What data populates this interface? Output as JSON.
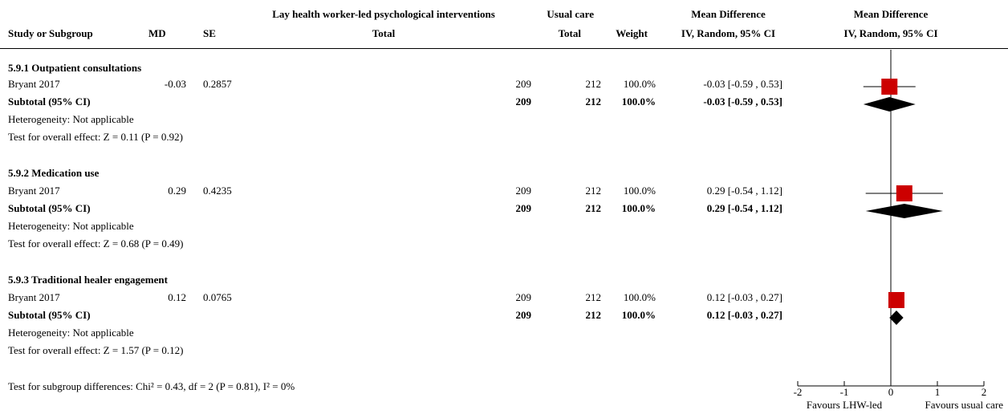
{
  "header": {
    "study_or_subgroup": "Study or Subgroup",
    "md": "MD",
    "se": "SE",
    "experimental_group": "Lay health worker-led psychological interventions",
    "experimental_total": "Total",
    "control_group": "Usual care",
    "control_total": "Total",
    "weight": "Weight",
    "effect_title": "Mean Difference",
    "effect_method": "IV, Random, 95% CI",
    "plot_title": "Mean Difference",
    "plot_method": "IV, Random, 95% CI"
  },
  "subgroups": [
    {
      "title": "5.9.1 Outpatient consultations",
      "study": {
        "name": "Bryant 2017",
        "md": "-0.03",
        "se": "0.2857",
        "n_exp": "209",
        "n_ctrl": "212",
        "weight": "100.0%",
        "ci": "-0.03 [-0.59 , 0.53]"
      },
      "subtotal": {
        "label": "Subtotal (95% CI)",
        "n_exp": "209",
        "n_ctrl": "212",
        "weight": "100.0%",
        "ci": "-0.03 [-0.59 , 0.53]"
      },
      "heterogeneity": "Heterogeneity: Not applicable",
      "overall": "Test for overall effect: Z = 0.11 (P = 0.92)"
    },
    {
      "title": "5.9.2 Medication use",
      "study": {
        "name": "Bryant 2017",
        "md": "0.29",
        "se": "0.4235",
        "n_exp": "209",
        "n_ctrl": "212",
        "weight": "100.0%",
        "ci": "0.29 [-0.54 , 1.12]"
      },
      "subtotal": {
        "label": "Subtotal (95% CI)",
        "n_exp": "209",
        "n_ctrl": "212",
        "weight": "100.0%",
        "ci": "0.29 [-0.54 , 1.12]"
      },
      "heterogeneity": "Heterogeneity: Not applicable",
      "overall": "Test for overall effect: Z = 0.68 (P = 0.49)"
    },
    {
      "title": "5.9.3 Traditional healer engagement",
      "study": {
        "name": "Bryant 2017",
        "md": "0.12",
        "se": "0.0765",
        "n_exp": "209",
        "n_ctrl": "212",
        "weight": "100.0%",
        "ci": "0.12 [-0.03 , 0.27]"
      },
      "subtotal": {
        "label": "Subtotal (95% CI)",
        "n_exp": "209",
        "n_ctrl": "212",
        "weight": "100.0%",
        "ci": "0.12 [-0.03 , 0.27]"
      },
      "heterogeneity": "Heterogeneity: Not applicable",
      "overall": "Test for overall effect: Z = 1.57 (P = 0.12)"
    }
  ],
  "subgroup_differences": "Test for subgroup differences: Chi² = 0.43, df = 2 (P = 0.81), I² = 0%",
  "axis": {
    "favours_left": "Favours LHW-led",
    "favours_right": "Favours usual care"
  },
  "colors": {
    "study_marker": "#cc0000",
    "summary_diamond": "#000000"
  },
  "chart_data": {
    "type": "forest",
    "xlim": [
      -2,
      2
    ],
    "xticks": [
      -2,
      -1,
      0,
      1,
      2
    ],
    "xtick_labels": [
      "-2",
      "-1",
      "0",
      "1",
      "2"
    ],
    "null_line": 0,
    "studies": [
      {
        "subgroup": "5.9.1 Outpatient consultations",
        "name": "Bryant 2017",
        "md": -0.03,
        "lo": -0.59,
        "hi": 0.53,
        "weight": 100.0
      },
      {
        "subgroup": "5.9.2 Medication use",
        "name": "Bryant 2017",
        "md": 0.29,
        "lo": -0.54,
        "hi": 1.12,
        "weight": 100.0
      },
      {
        "subgroup": "5.9.3 Traditional healer engagement",
        "name": "Bryant 2017",
        "md": 0.12,
        "lo": -0.03,
        "hi": 0.27,
        "weight": 100.0
      }
    ],
    "subtotals": [
      {
        "subgroup": "5.9.1 Outpatient consultations",
        "md": -0.03,
        "lo": -0.59,
        "hi": 0.53
      },
      {
        "subgroup": "5.9.2 Medication use",
        "md": 0.29,
        "lo": -0.54,
        "hi": 1.12
      },
      {
        "subgroup": "5.9.3 Traditional healer engagement",
        "md": 0.12,
        "lo": -0.03,
        "hi": 0.27
      }
    ]
  }
}
